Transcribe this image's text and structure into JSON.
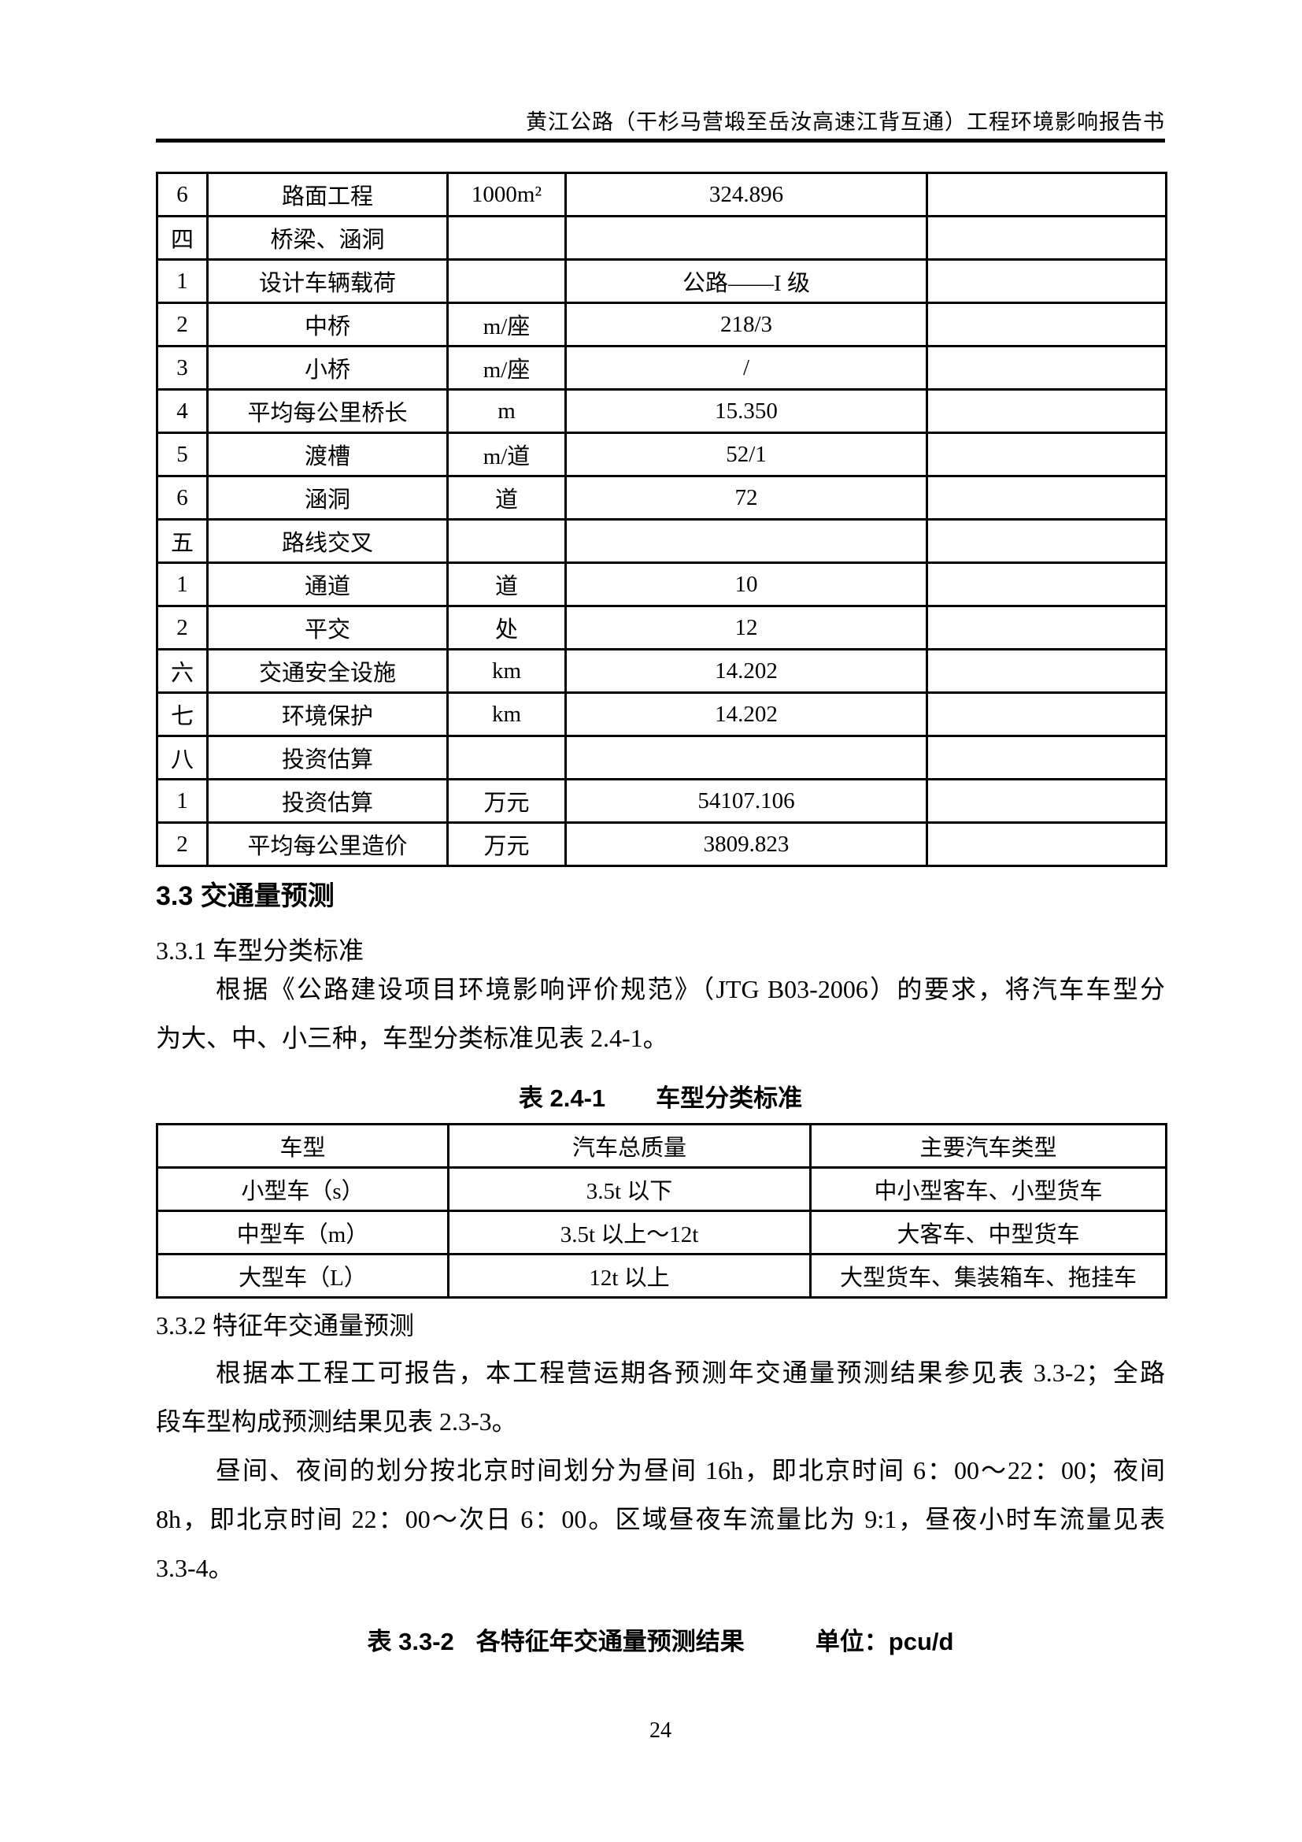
{
  "header": {
    "title": "黄江公路（干杉马营塅至岳汝高速江背互通）工程环境影响报告书"
  },
  "scale_table": {
    "rows": [
      [
        "6",
        "路面工程",
        "1000m²",
        "324.896",
        ""
      ],
      [
        "四",
        "桥梁、涵洞",
        "",
        "",
        ""
      ],
      [
        "1",
        "设计车辆载荷",
        "",
        "公路——I 级",
        ""
      ],
      [
        "2",
        "中桥",
        "m/座",
        "218/3",
        ""
      ],
      [
        "3",
        "小桥",
        "m/座",
        "/",
        ""
      ],
      [
        "4",
        "平均每公里桥长",
        "m",
        "15.350",
        ""
      ],
      [
        "5",
        "渡槽",
        "m/道",
        "52/1",
        ""
      ],
      [
        "6",
        "涵洞",
        "道",
        "72",
        ""
      ],
      [
        "五",
        "路线交叉",
        "",
        "",
        ""
      ],
      [
        "1",
        "通道",
        "道",
        "10",
        ""
      ],
      [
        "2",
        "平交",
        "处",
        "12",
        ""
      ],
      [
        "六",
        "交通安全设施",
        "km",
        "14.202",
        ""
      ],
      [
        "七",
        "环境保护",
        "km",
        "14.202",
        ""
      ],
      [
        "八",
        "投资估算",
        "",
        "",
        ""
      ],
      [
        "1",
        "投资估算",
        "万元",
        "54107.106",
        ""
      ],
      [
        "2",
        "平均每公里造价",
        "万元",
        "3809.823",
        ""
      ]
    ]
  },
  "section_33": {
    "heading": "3.3  交通量预测"
  },
  "section_331": {
    "heading": "3.3.1 车型分类标准",
    "para_lines": [
      "根据《公路建设项目环境影响评价规范》（JTG B03-2006）的要求，将汽车车型分",
      "为大、中、小三种，车型分类标准见表 2.4-1。"
    ]
  },
  "table_241": {
    "caption_label": "表 2.4-1",
    "caption_title": "车型分类标准",
    "headers": [
      "车型",
      "汽车总质量",
      "主要汽车类型"
    ],
    "rows": [
      [
        "小型车（s）",
        "3.5t 以下",
        "中小型客车、小型货车"
      ],
      [
        "中型车（m）",
        "3.5t 以上～12t",
        "大客车、中型货车"
      ],
      [
        "大型车（L）",
        "12t 以上",
        "大型货车、集装箱车、拖挂车"
      ]
    ]
  },
  "section_332": {
    "heading": "3.3.2 特征年交通量预测",
    "para1_lines": [
      "根据本工程工可报告，本工程营运期各预测年交通量预测结果参见表 3.3-2；全路",
      "段车型构成预测结果见表 2.3-3。"
    ],
    "para2_lines": [
      "昼间、夜间的划分按北京时间划分为昼间 16h，即北京时间 6：00～22：00；夜间",
      "8h，即北京时间 22：00～次日 6：00。区域昼夜车流量比为 9:1，昼夜小时车流量见表",
      "3.3-4。"
    ]
  },
  "table_332": {
    "caption_label": "表 3.3-2",
    "caption_title": "各特征年交通量预测结果",
    "caption_unit": "单位：pcu/d"
  },
  "footer": {
    "page_number": "24"
  }
}
